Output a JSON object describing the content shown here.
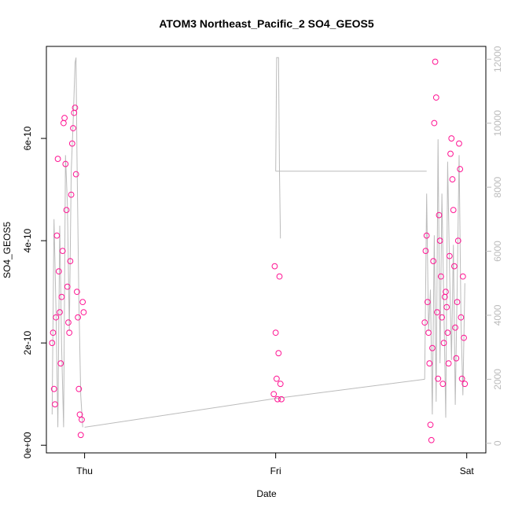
{
  "chart_data": {
    "type": "scatter",
    "title": "ATOM3 Northeast_Pacific_2 SO4_GEOS5",
    "xlabel": "Date",
    "ylabel": "SO4_GEOS5",
    "x_tick_labels": [
      "Thu",
      "Fri",
      "Sat"
    ],
    "x_tick_values": [
      0,
      1,
      2
    ],
    "xlim": [
      -0.2,
      2.1
    ],
    "y_tick_labels": [
      "0e+00",
      "2e-10",
      "4e-10",
      "6e-10"
    ],
    "y_tick_values": [
      0,
      2e-10,
      4e-10,
      6e-10
    ],
    "ylim": [
      -1.5e-11,
      7.8e-10
    ],
    "y2_tick_labels": [
      "0",
      "2000",
      "4000",
      "6000",
      "8000",
      "10000",
      "12000"
    ],
    "y2_tick_values": [
      0,
      2000,
      4000,
      6000,
      8000,
      10000,
      12000
    ],
    "y2lim": [
      -300,
      12400
    ],
    "point_color": "#ff1493",
    "line_color": "#bbbbbb",
    "series": [
      {
        "marker": "open-circle",
        "segments": [
          {
            "x": [
              -0.17,
              -0.165,
              -0.16,
              -0.155,
              -0.15,
              -0.145,
              -0.14,
              -0.135,
              -0.13,
              -0.125,
              -0.12,
              -0.115,
              -0.11,
              -0.105,
              -0.1,
              -0.095,
              -0.09,
              -0.085,
              -0.08,
              -0.075,
              -0.07,
              -0.065,
              -0.06,
              -0.055,
              -0.05,
              -0.045,
              -0.04,
              -0.035,
              -0.03,
              -0.025,
              -0.02,
              -0.015,
              -0.01,
              -0.005
            ],
            "y": [
              2e-10,
              2.2e-10,
              1.1e-10,
              8e-11,
              2.5e-10,
              4.1e-10,
              5.6e-10,
              3.4e-10,
              2.6e-10,
              1.6e-10,
              2.9e-10,
              3.8e-10,
              6.3e-10,
              6.4e-10,
              5.5e-10,
              4.6e-10,
              3.1e-10,
              2.4e-10,
              2.2e-10,
              3.6e-10,
              4.9e-10,
              5.9e-10,
              6.2e-10,
              6.5e-10,
              6.6e-10,
              5.3e-10,
              3e-10,
              2.5e-10,
              1.1e-10,
              6e-11,
              2e-11,
              5e-11,
              2.8e-10,
              2.6e-10
            ]
          },
          {
            "x": [
              0.99,
              0.995,
              1.0,
              1.005,
              1.01,
              1.015,
              1.02,
              1.025,
              1.03
            ],
            "y": [
              1e-10,
              3.5e-10,
              2.2e-10,
              1.3e-10,
              9e-11,
              1.8e-10,
              3.3e-10,
              1.2e-10,
              9e-11
            ]
          },
          {
            "x": [
              1.78,
              1.785,
              1.79,
              1.795,
              1.8,
              1.805,
              1.81,
              1.815,
              1.82,
              1.825,
              1.83,
              1.835,
              1.84,
              1.845,
              1.85,
              1.855,
              1.86,
              1.865,
              1.87,
              1.875,
              1.88,
              1.885,
              1.89,
              1.895,
              1.9,
              1.905,
              1.91,
              1.915,
              1.92,
              1.925,
              1.93,
              1.935,
              1.94,
              1.945,
              1.95,
              1.955,
              1.96,
              1.965,
              1.97,
              1.975,
              1.98,
              1.985,
              1.99
            ],
            "y": [
              2.4e-10,
              3.8e-10,
              4.1e-10,
              2.8e-10,
              2.2e-10,
              1.6e-10,
              4e-11,
              1e-11,
              1.9e-10,
              3.6e-10,
              6.3e-10,
              7.5e-10,
              6.8e-10,
              2.6e-10,
              1.3e-10,
              4.5e-10,
              4e-10,
              3.3e-10,
              2.5e-10,
              1.2e-10,
              2e-10,
              2.9e-10,
              3e-10,
              2.7e-10,
              2.2e-10,
              1.6e-10,
              3.7e-10,
              5.7e-10,
              6e-10,
              5.2e-10,
              4.6e-10,
              3.5e-10,
              2.3e-10,
              1.7e-10,
              2.8e-10,
              4e-10,
              5.9e-10,
              5.4e-10,
              2.5e-10,
              1.3e-10,
              3.3e-10,
              2.1e-10,
              1.2e-10
            ]
          }
        ]
      },
      {
        "axis": "right",
        "segments": [
          {
            "x": [
              -0.17,
              -0.16,
              -0.15,
              -0.14,
              -0.13,
              -0.12,
              -0.11,
              -0.1,
              -0.09,
              -0.08,
              -0.07,
              -0.06,
              -0.05,
              -0.045,
              -0.04,
              -0.03,
              -0.02,
              -0.01
            ],
            "y": [
              900,
              7000,
              4200,
              500,
              6800,
              3000,
              500,
              9000,
              7500,
              3500,
              8500,
              10000,
              11900,
              12050,
              9000,
              4500,
              1500,
              500
            ]
          },
          {
            "x": [
              0.0,
              1.0
            ],
            "y": [
              500,
              1400
            ]
          },
          {
            "x": [
              1.0,
              1.005,
              1.01,
              1.015,
              1.02,
              1.025
            ],
            "y": [
              8500,
              12050,
              12050,
              12050,
              8500,
              6400
            ]
          },
          {
            "x": [
              1.0,
              1.79
            ],
            "y": [
              8500,
              8500
            ]
          },
          {
            "x": [
              1.0,
              1.78
            ],
            "y": [
              1400,
              2000
            ]
          },
          {
            "x": [
              1.78,
              1.79,
              1.8,
              1.81,
              1.82,
              1.83,
              1.84,
              1.85,
              1.86,
              1.87,
              1.88,
              1.89,
              1.9,
              1.91,
              1.92,
              1.93,
              1.94,
              1.95,
              1.96,
              1.97,
              1.98,
              1.99
            ],
            "y": [
              2000,
              7800,
              3500,
              4800,
              900,
              6500,
              1300,
              9500,
              2500,
              7800,
              4400,
              800,
              8800,
              5500,
              2600,
              6200,
              1200,
              4800,
              9000,
              3800,
              1500,
              5000
            ]
          }
        ]
      }
    ]
  }
}
